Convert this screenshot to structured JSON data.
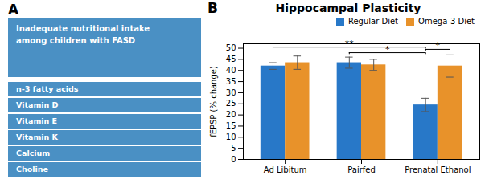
{
  "chart_data": {
    "type": "bar",
    "title": "Hippocampal Plasticity",
    "categories": [
      "Ad Libitum",
      "Pairfed",
      "Prenatal Ethanol"
    ],
    "series": [
      {
        "name": "Regular Diet",
        "color": "#2878C8",
        "values": [
          42.0,
          43.5,
          24.5
        ],
        "errors": [
          1.5,
          2.5,
          3.0
        ]
      },
      {
        "name": "Omega-3 Diet",
        "color": "#E8922A",
        "values": [
          43.5,
          42.5,
          42.0
        ],
        "errors": [
          3.0,
          2.5,
          5.0
        ]
      }
    ],
    "ylabel": "fEPSP (% change)",
    "ylim": [
      0,
      52
    ],
    "yticks": [
      0,
      5,
      10,
      15,
      20,
      25,
      30,
      35,
      40,
      45,
      50
    ],
    "legend": "upper right",
    "annotations": {
      "panel_labels": [
        "A",
        "B"
      ],
      "header": "Inadequate nutritional intake\namong children with FASD",
      "items": [
        "n-3 fatty acids",
        "Vitamin D",
        "Vitamin E",
        "Vitamin K",
        "Calcium",
        "Choline"
      ],
      "brackets": [
        {
          "text": "**",
          "from": [
            0,
            0
          ],
          "to": [
            2,
            0
          ],
          "y": 50.5
        },
        {
          "text": "*",
          "from": [
            1,
            0
          ],
          "to": [
            2,
            0
          ],
          "y": 48.0
        },
        {
          "text": "*",
          "from": [
            2,
            0
          ],
          "to": [
            2,
            1
          ],
          "y": 49.5
        }
      ]
    }
  }
}
